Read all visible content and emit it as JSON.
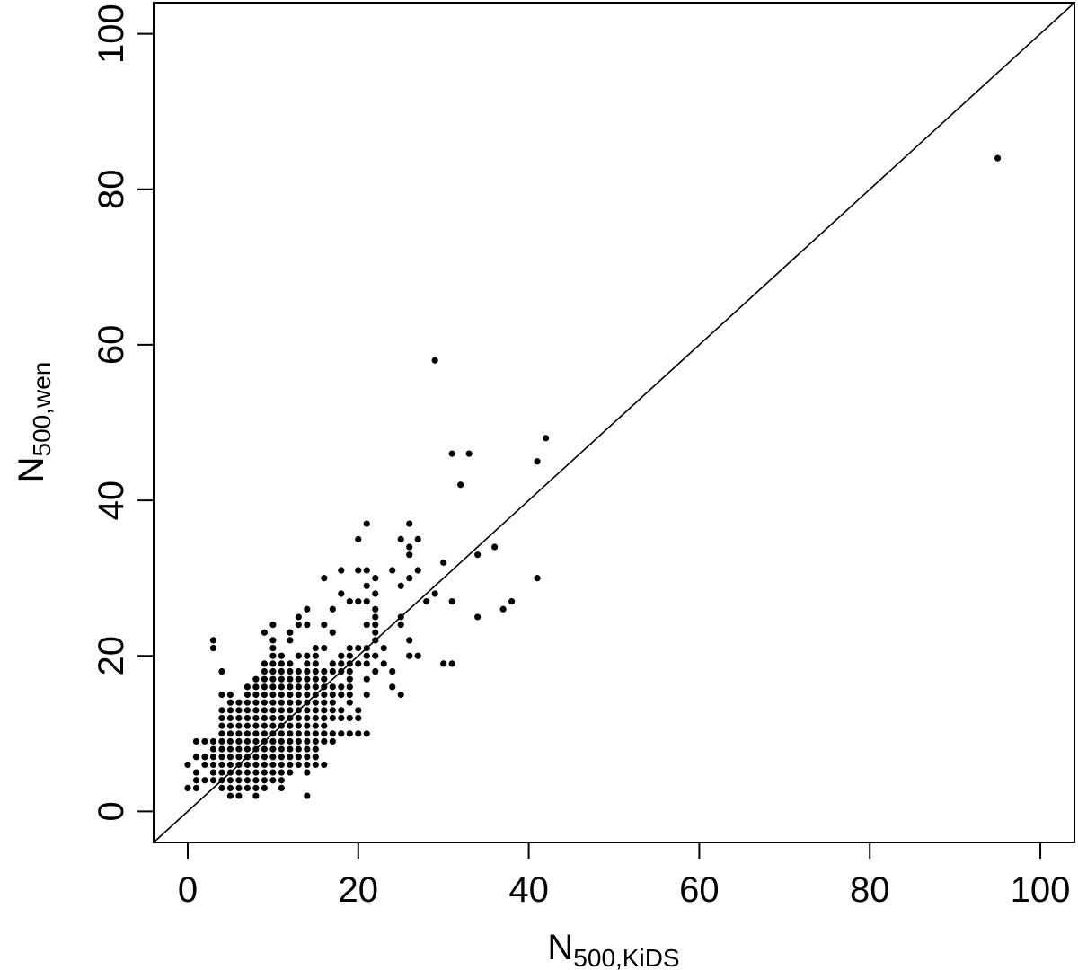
{
  "chart_data": {
    "type": "scatter",
    "title": "",
    "xlabel": {
      "main": "N",
      "sub": "500,KiDS"
    },
    "ylabel": {
      "main": "N",
      "sub": "500,wen"
    },
    "xlim": [
      -4,
      104
    ],
    "ylim": [
      -4,
      104
    ],
    "xticks": [
      0,
      20,
      40,
      60,
      80,
      100
    ],
    "yticks": [
      0,
      20,
      40,
      60,
      80,
      100
    ],
    "xtick_labels": [
      "0",
      "20",
      "40",
      "60",
      "80",
      "100"
    ],
    "ytick_labels": [
      "0",
      "20",
      "40",
      "60",
      "80",
      "100"
    ],
    "grid": false,
    "reference_line": {
      "type": "identity",
      "slope": 1,
      "intercept": 0
    },
    "point_color": "#000000",
    "points": [
      [
        0,
        3
      ],
      [
        0,
        6
      ],
      [
        1,
        3
      ],
      [
        1,
        4
      ],
      [
        1,
        5
      ],
      [
        1,
        7
      ],
      [
        1,
        9
      ],
      [
        2,
        4
      ],
      [
        2,
        6
      ],
      [
        2,
        7
      ],
      [
        2,
        9
      ],
      [
        3,
        4
      ],
      [
        3,
        5
      ],
      [
        3,
        6
      ],
      [
        3,
        7
      ],
      [
        3,
        8
      ],
      [
        3,
        9
      ],
      [
        3,
        21
      ],
      [
        3,
        22
      ],
      [
        4,
        3
      ],
      [
        4,
        4
      ],
      [
        4,
        5
      ],
      [
        4,
        6
      ],
      [
        4,
        7
      ],
      [
        4,
        8
      ],
      [
        4,
        9
      ],
      [
        4,
        10
      ],
      [
        4,
        11
      ],
      [
        4,
        12
      ],
      [
        4,
        13
      ],
      [
        4,
        15
      ],
      [
        4,
        18
      ],
      [
        5,
        2
      ],
      [
        5,
        3
      ],
      [
        5,
        4
      ],
      [
        5,
        5
      ],
      [
        5,
        6
      ],
      [
        5,
        7
      ],
      [
        5,
        8
      ],
      [
        5,
        9
      ],
      [
        5,
        10
      ],
      [
        5,
        11
      ],
      [
        5,
        12
      ],
      [
        5,
        13
      ],
      [
        5,
        14
      ],
      [
        5,
        15
      ],
      [
        6,
        2
      ],
      [
        6,
        3
      ],
      [
        6,
        4
      ],
      [
        6,
        5
      ],
      [
        6,
        6
      ],
      [
        6,
        7
      ],
      [
        6,
        8
      ],
      [
        6,
        9
      ],
      [
        6,
        10
      ],
      [
        6,
        11
      ],
      [
        6,
        12
      ],
      [
        6,
        13
      ],
      [
        6,
        14
      ],
      [
        7,
        3
      ],
      [
        7,
        4
      ],
      [
        7,
        5
      ],
      [
        7,
        6
      ],
      [
        7,
        7
      ],
      [
        7,
        8
      ],
      [
        7,
        9
      ],
      [
        7,
        10
      ],
      [
        7,
        11
      ],
      [
        7,
        12
      ],
      [
        7,
        13
      ],
      [
        7,
        14
      ],
      [
        7,
        15
      ],
      [
        7,
        16
      ],
      [
        8,
        2
      ],
      [
        8,
        3
      ],
      [
        8,
        4
      ],
      [
        8,
        5
      ],
      [
        8,
        6
      ],
      [
        8,
        7
      ],
      [
        8,
        8
      ],
      [
        8,
        9
      ],
      [
        8,
        10
      ],
      [
        8,
        11
      ],
      [
        8,
        12
      ],
      [
        8,
        13
      ],
      [
        8,
        14
      ],
      [
        8,
        15
      ],
      [
        8,
        16
      ],
      [
        8,
        17
      ],
      [
        9,
        3
      ],
      [
        9,
        4
      ],
      [
        9,
        5
      ],
      [
        9,
        6
      ],
      [
        9,
        7
      ],
      [
        9,
        8
      ],
      [
        9,
        9
      ],
      [
        9,
        10
      ],
      [
        9,
        11
      ],
      [
        9,
        12
      ],
      [
        9,
        13
      ],
      [
        9,
        14
      ],
      [
        9,
        15
      ],
      [
        9,
        16
      ],
      [
        9,
        17
      ],
      [
        9,
        18
      ],
      [
        9,
        19
      ],
      [
        9,
        23
      ],
      [
        10,
        4
      ],
      [
        10,
        5
      ],
      [
        10,
        6
      ],
      [
        10,
        7
      ],
      [
        10,
        8
      ],
      [
        10,
        9
      ],
      [
        10,
        10
      ],
      [
        10,
        11
      ],
      [
        10,
        12
      ],
      [
        10,
        13
      ],
      [
        10,
        14
      ],
      [
        10,
        15
      ],
      [
        10,
        16
      ],
      [
        10,
        17
      ],
      [
        10,
        18
      ],
      [
        10,
        19
      ],
      [
        10,
        20
      ],
      [
        10,
        21
      ],
      [
        10,
        22
      ],
      [
        10,
        24
      ],
      [
        11,
        3
      ],
      [
        11,
        4
      ],
      [
        11,
        5
      ],
      [
        11,
        6
      ],
      [
        11,
        7
      ],
      [
        11,
        8
      ],
      [
        11,
        9
      ],
      [
        11,
        10
      ],
      [
        11,
        11
      ],
      [
        11,
        12
      ],
      [
        11,
        13
      ],
      [
        11,
        14
      ],
      [
        11,
        15
      ],
      [
        11,
        16
      ],
      [
        11,
        17
      ],
      [
        11,
        18
      ],
      [
        11,
        19
      ],
      [
        11,
        20
      ],
      [
        12,
        5
      ],
      [
        12,
        6
      ],
      [
        12,
        7
      ],
      [
        12,
        8
      ],
      [
        12,
        9
      ],
      [
        12,
        10
      ],
      [
        12,
        11
      ],
      [
        12,
        12
      ],
      [
        12,
        13
      ],
      [
        12,
        14
      ],
      [
        12,
        15
      ],
      [
        12,
        16
      ],
      [
        12,
        17
      ],
      [
        12,
        18
      ],
      [
        12,
        19
      ],
      [
        12,
        22
      ],
      [
        12,
        23
      ],
      [
        13,
        6
      ],
      [
        13,
        7
      ],
      [
        13,
        8
      ],
      [
        13,
        9
      ],
      [
        13,
        10
      ],
      [
        13,
        11
      ],
      [
        13,
        12
      ],
      [
        13,
        13
      ],
      [
        13,
        14
      ],
      [
        13,
        15
      ],
      [
        13,
        16
      ],
      [
        13,
        17
      ],
      [
        13,
        18
      ],
      [
        13,
        20
      ],
      [
        13,
        24
      ],
      [
        13,
        25
      ],
      [
        14,
        2
      ],
      [
        14,
        5
      ],
      [
        14,
        6
      ],
      [
        14,
        7
      ],
      [
        14,
        8
      ],
      [
        14,
        9
      ],
      [
        14,
        10
      ],
      [
        14,
        11
      ],
      [
        14,
        12
      ],
      [
        14,
        13
      ],
      [
        14,
        14
      ],
      [
        14,
        15
      ],
      [
        14,
        16
      ],
      [
        14,
        17
      ],
      [
        14,
        18
      ],
      [
        14,
        19
      ],
      [
        14,
        20
      ],
      [
        14,
        24
      ],
      [
        14,
        26
      ],
      [
        15,
        6
      ],
      [
        15,
        7
      ],
      [
        15,
        8
      ],
      [
        15,
        9
      ],
      [
        15,
        10
      ],
      [
        15,
        11
      ],
      [
        15,
        12
      ],
      [
        15,
        13
      ],
      [
        15,
        14
      ],
      [
        15,
        15
      ],
      [
        15,
        16
      ],
      [
        15,
        17
      ],
      [
        15,
        18
      ],
      [
        15,
        19
      ],
      [
        15,
        20
      ],
      [
        15,
        21
      ],
      [
        16,
        6
      ],
      [
        16,
        9
      ],
      [
        16,
        10
      ],
      [
        16,
        11
      ],
      [
        16,
        12
      ],
      [
        16,
        13
      ],
      [
        16,
        14
      ],
      [
        16,
        15
      ],
      [
        16,
        16
      ],
      [
        16,
        17
      ],
      [
        16,
        18
      ],
      [
        16,
        21
      ],
      [
        16,
        24
      ],
      [
        16,
        30
      ],
      [
        17,
        9
      ],
      [
        17,
        10
      ],
      [
        17,
        12
      ],
      [
        17,
        13
      ],
      [
        17,
        14
      ],
      [
        17,
        15
      ],
      [
        17,
        16
      ],
      [
        17,
        18
      ],
      [
        17,
        19
      ],
      [
        17,
        23
      ],
      [
        17,
        26
      ],
      [
        18,
        10
      ],
      [
        18,
        12
      ],
      [
        18,
        13
      ],
      [
        18,
        15
      ],
      [
        18,
        16
      ],
      [
        18,
        18
      ],
      [
        18,
        19
      ],
      [
        18,
        20
      ],
      [
        18,
        28
      ],
      [
        18,
        31
      ],
      [
        19,
        10
      ],
      [
        19,
        12
      ],
      [
        19,
        14
      ],
      [
        19,
        15
      ],
      [
        19,
        16
      ],
      [
        19,
        17
      ],
      [
        19,
        18
      ],
      [
        19,
        19
      ],
      [
        19,
        20
      ],
      [
        19,
        21
      ],
      [
        19,
        27
      ],
      [
        20,
        10
      ],
      [
        20,
        12
      ],
      [
        20,
        13
      ],
      [
        20,
        19
      ],
      [
        20,
        21
      ],
      [
        20,
        27
      ],
      [
        20,
        31
      ],
      [
        20,
        35
      ],
      [
        21,
        10
      ],
      [
        21,
        15
      ],
      [
        21,
        17
      ],
      [
        21,
        19
      ],
      [
        21,
        20
      ],
      [
        21,
        21
      ],
      [
        21,
        24
      ],
      [
        21,
        27
      ],
      [
        21,
        29
      ],
      [
        21,
        31
      ],
      [
        21,
        37
      ],
      [
        22,
        18
      ],
      [
        22,
        20
      ],
      [
        22,
        22
      ],
      [
        22,
        23
      ],
      [
        22,
        24
      ],
      [
        22,
        25
      ],
      [
        22,
        26
      ],
      [
        22,
        28
      ],
      [
        22,
        30
      ],
      [
        23,
        19
      ],
      [
        23,
        21
      ],
      [
        24,
        16
      ],
      [
        24,
        18
      ],
      [
        24,
        31
      ],
      [
        25,
        15
      ],
      [
        25,
        24
      ],
      [
        25,
        25
      ],
      [
        25,
        29
      ],
      [
        25,
        35
      ],
      [
        26,
        20
      ],
      [
        26,
        22
      ],
      [
        26,
        30
      ],
      [
        26,
        33
      ],
      [
        26,
        34
      ],
      [
        26,
        37
      ],
      [
        27,
        20
      ],
      [
        27,
        31
      ],
      [
        27,
        35
      ],
      [
        28,
        27
      ],
      [
        29,
        28
      ],
      [
        29,
        58
      ],
      [
        30,
        19
      ],
      [
        30,
        32
      ],
      [
        31,
        19
      ],
      [
        31,
        27
      ],
      [
        31,
        46
      ],
      [
        32,
        42
      ],
      [
        33,
        46
      ],
      [
        34,
        25
      ],
      [
        34,
        33
      ],
      [
        36,
        34
      ],
      [
        37,
        26
      ],
      [
        38,
        27
      ],
      [
        41,
        30
      ],
      [
        41,
        45
      ],
      [
        42,
        48
      ],
      [
        95,
        84
      ]
    ]
  }
}
